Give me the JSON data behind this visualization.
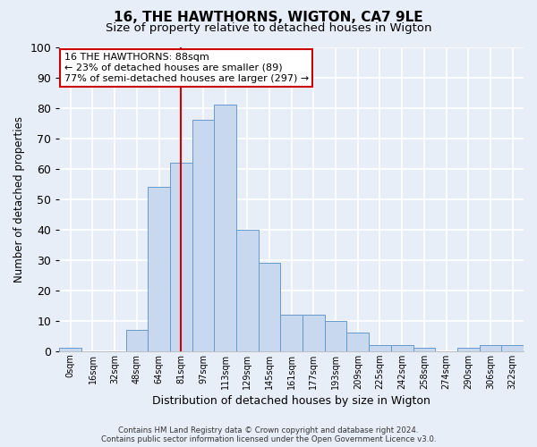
{
  "title": "16, THE HAWTHORNS, WIGTON, CA7 9LE",
  "subtitle": "Size of property relative to detached houses in Wigton",
  "xlabel": "Distribution of detached houses by size in Wigton",
  "ylabel": "Number of detached properties",
  "bin_labels": [
    "0sqm",
    "16sqm",
    "32sqm",
    "48sqm",
    "64sqm",
    "81sqm",
    "97sqm",
    "113sqm",
    "129sqm",
    "145sqm",
    "161sqm",
    "177sqm",
    "193sqm",
    "209sqm",
    "225sqm",
    "242sqm",
    "258sqm",
    "274sqm",
    "290sqm",
    "306sqm",
    "322sqm"
  ],
  "bar_values": [
    1,
    0,
    0,
    7,
    54,
    62,
    76,
    81,
    40,
    29,
    12,
    12,
    10,
    6,
    2,
    2,
    1,
    0,
    1,
    2,
    2
  ],
  "bar_color": "#c8d9ef",
  "bar_edge_color": "#6699cc",
  "ylim": [
    0,
    100
  ],
  "yticks": [
    0,
    10,
    20,
    30,
    40,
    50,
    60,
    70,
    80,
    90,
    100
  ],
  "vline_x": 5.5,
  "vline_color": "#cc0000",
  "annotation_title": "16 THE HAWTHORNS: 88sqm",
  "annotation_line1": "← 23% of detached houses are smaller (89)",
  "annotation_line2": "77% of semi-detached houses are larger (297) →",
  "annotation_box_color": "#ffffff",
  "annotation_box_edge": "#cc0000",
  "footer1": "Contains HM Land Registry data © Crown copyright and database right 2024.",
  "footer2": "Contains public sector information licensed under the Open Government Licence v3.0.",
  "background_color": "#e8eef8",
  "grid_color": "#ffffff",
  "title_fontsize": 11,
  "subtitle_fontsize": 9.5
}
